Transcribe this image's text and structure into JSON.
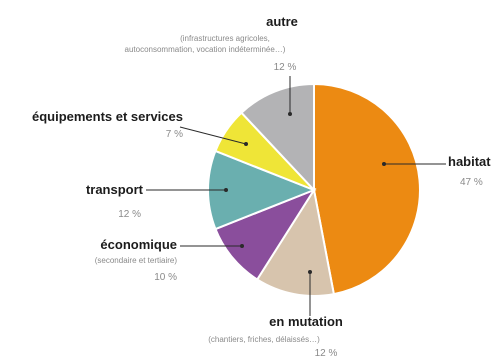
{
  "chart_data": {
    "type": "pie",
    "title": "",
    "unit": "%",
    "slices": [
      {
        "label": "habitat",
        "value": 47,
        "value_label": "47 %",
        "sublabel": "",
        "color": "#ec8a12"
      },
      {
        "label": "en mutation",
        "value": 12,
        "value_label": "12 %",
        "sublabel": "(chantiers, friches, délaissés…)",
        "color": "#d7c4ad"
      },
      {
        "label": "économique",
        "value": 10,
        "value_label": "10 %",
        "sublabel": "(secondaire et tertiaire)",
        "color": "#8a4e9c"
      },
      {
        "label": "transport",
        "value": 12,
        "value_label": "12 %",
        "sublabel": "",
        "color": "#6aafaf"
      },
      {
        "label": "équipements et services",
        "value": 7,
        "value_label": "7 %",
        "sublabel": "",
        "color": "#efe537"
      },
      {
        "label": "autre",
        "value": 12,
        "value_label": "12 %",
        "sublabel": "(infrastructures agricoles, autoconsommation, vocation indéterminée…)",
        "color": "#b3b3b5"
      }
    ],
    "legend": "none"
  }
}
